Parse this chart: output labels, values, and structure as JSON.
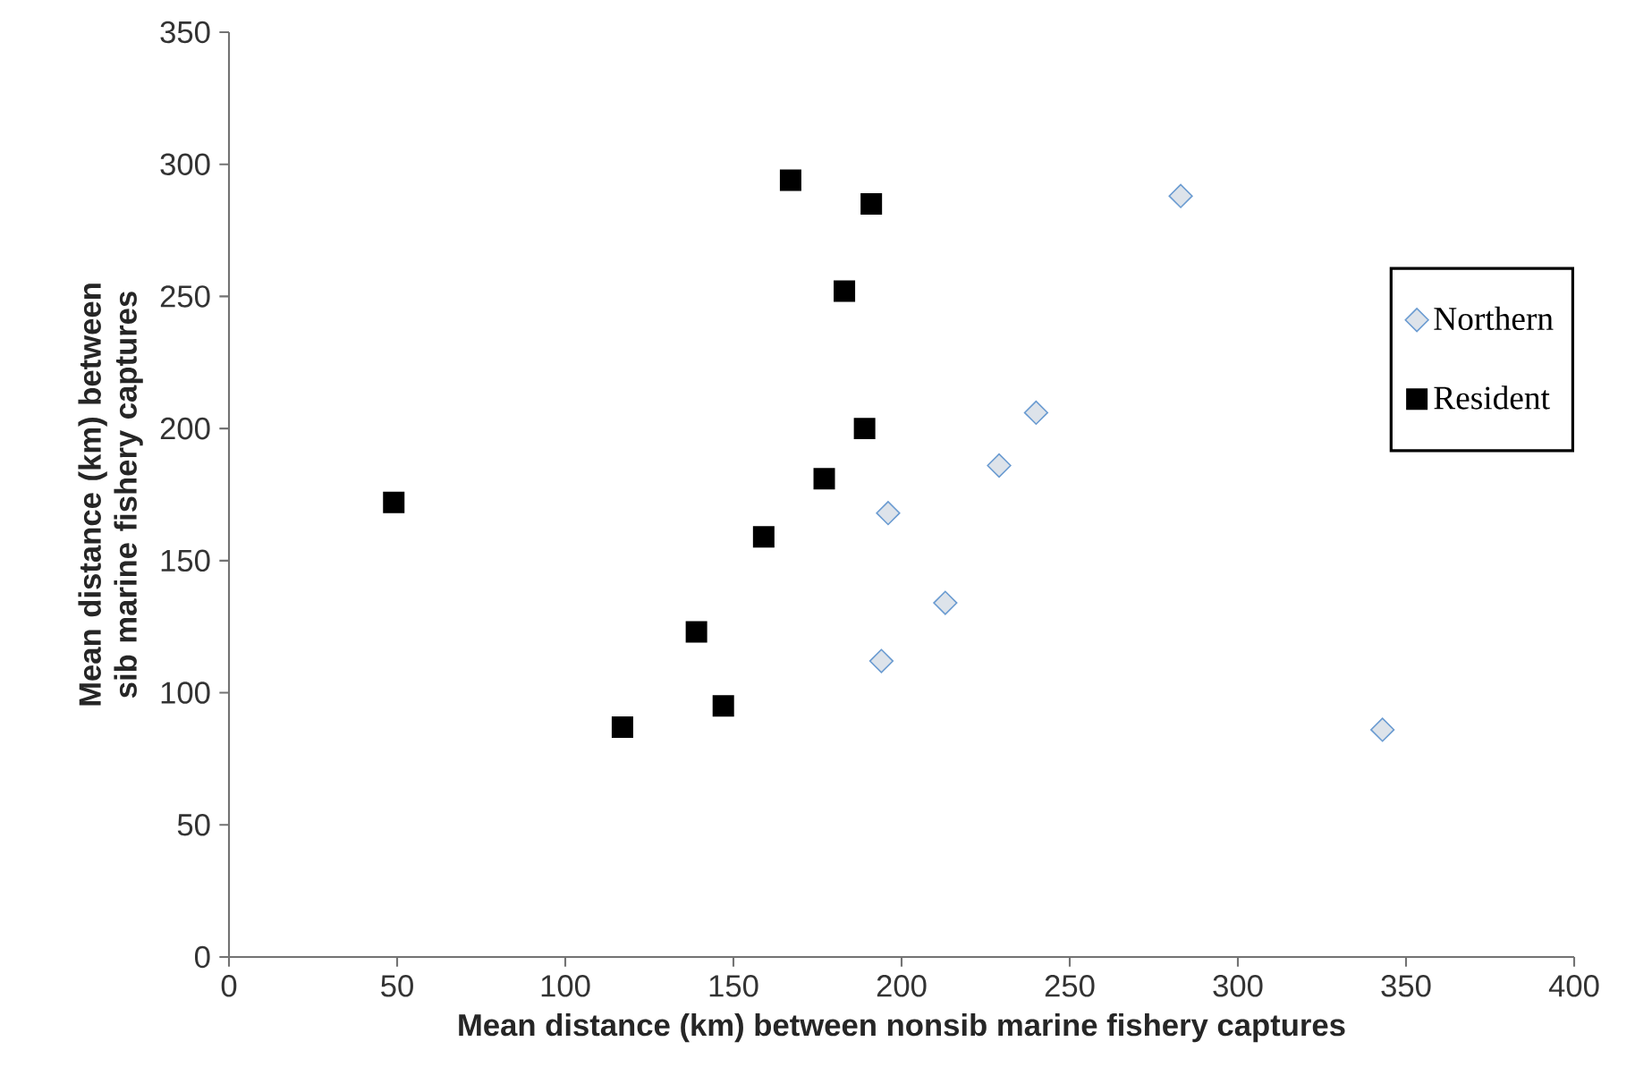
{
  "chart_data": {
    "type": "scatter",
    "xlabel": "Mean distance (km) between nonsib marine fishery captures",
    "ylabel": "Mean distance (km) between sib marine fishery captures",
    "xlim": [
      0,
      400
    ],
    "ylim": [
      0,
      350
    ],
    "xticks": [
      0,
      50,
      100,
      150,
      200,
      250,
      300,
      350,
      400
    ],
    "yticks": [
      0,
      50,
      100,
      150,
      200,
      250,
      300,
      350
    ],
    "legend": "right",
    "grid": false,
    "series": [
      {
        "name": "Northern",
        "color": "#6a9bd1",
        "marker": "diamond",
        "x": [
          283,
          240,
          229,
          196,
          213,
          194,
          343
        ],
        "values": [
          288,
          206,
          186,
          168,
          134,
          112,
          86
        ]
      },
      {
        "name": "Resident",
        "color": "#000000",
        "marker": "square",
        "x": [
          167,
          191,
          183,
          189,
          177,
          159,
          139,
          147,
          117,
          49
        ],
        "values": [
          294,
          285,
          252,
          200,
          181,
          159,
          123,
          95,
          87,
          172
        ]
      }
    ]
  }
}
